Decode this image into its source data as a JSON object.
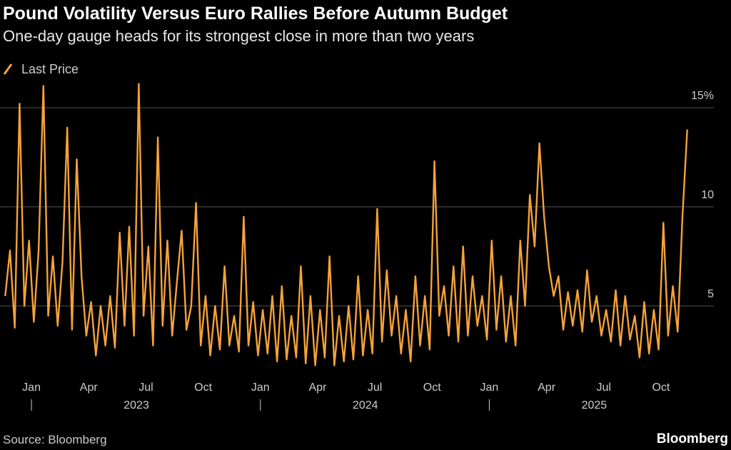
{
  "chart_data": {
    "type": "line",
    "title": "Pound Volatility Versus Euro Rallies Before Autumn Budget",
    "subtitle": "One-day gauge heads for its strongest close in more than two years",
    "source": "Source: Bloomberg",
    "brand": "Bloomberg",
    "x": [
      "2022-12",
      "2022-12",
      "2022-12",
      "2022-12",
      "2023-01",
      "2023-01",
      "2023-01",
      "2023-01",
      "2023-02",
      "2023-02",
      "2023-02",
      "2023-02",
      "2023-03",
      "2023-03",
      "2023-03",
      "2023-03",
      "2023-04",
      "2023-04",
      "2023-04",
      "2023-04",
      "2023-05",
      "2023-05",
      "2023-05",
      "2023-05",
      "2023-06",
      "2023-06",
      "2023-06",
      "2023-06",
      "2023-07",
      "2023-07",
      "2023-07",
      "2023-07",
      "2023-08",
      "2023-08",
      "2023-08",
      "2023-08",
      "2023-09",
      "2023-09",
      "2023-09",
      "2023-09",
      "2023-10",
      "2023-10",
      "2023-10",
      "2023-10",
      "2023-11",
      "2023-11",
      "2023-11",
      "2023-11",
      "2023-12",
      "2023-12",
      "2023-12",
      "2023-12",
      "2024-01",
      "2024-01",
      "2024-01",
      "2024-01",
      "2024-02",
      "2024-02",
      "2024-02",
      "2024-02",
      "2024-03",
      "2024-03",
      "2024-03",
      "2024-03",
      "2024-04",
      "2024-04",
      "2024-04",
      "2024-04",
      "2024-05",
      "2024-05",
      "2024-05",
      "2024-05",
      "2024-06",
      "2024-06",
      "2024-06",
      "2024-06",
      "2024-07",
      "2024-07",
      "2024-07",
      "2024-07",
      "2024-08",
      "2024-08",
      "2024-08",
      "2024-08",
      "2024-09",
      "2024-09",
      "2024-09",
      "2024-09",
      "2024-10",
      "2024-10",
      "2024-10",
      "2024-10",
      "2024-11",
      "2024-11",
      "2024-11",
      "2024-11",
      "2024-12",
      "2024-12",
      "2024-12",
      "2024-12",
      "2025-01",
      "2025-01",
      "2025-01",
      "2025-01",
      "2025-02",
      "2025-02",
      "2025-02",
      "2025-02",
      "2025-03",
      "2025-03",
      "2025-03",
      "2025-03",
      "2025-04",
      "2025-04",
      "2025-04",
      "2025-04",
      "2025-05",
      "2025-05",
      "2025-05",
      "2025-05",
      "2025-06",
      "2025-06",
      "2025-06",
      "2025-06",
      "2025-07",
      "2025-07",
      "2025-07",
      "2025-07",
      "2025-08",
      "2025-08",
      "2025-08",
      "2025-08",
      "2025-09",
      "2025-09",
      "2025-09",
      "2025-09",
      "2025-10",
      "2025-10",
      "2025-10",
      "2025-10",
      "2025-11",
      "2025-11",
      "2025-11",
      "2025-11"
    ],
    "series": [
      {
        "name": "Last Price",
        "color": "#f5a23a",
        "values": [
          5.5,
          7.8,
          3.9,
          15.2,
          5.0,
          8.3,
          4.2,
          7.8,
          16.1,
          4.5,
          7.5,
          4.0,
          7.2,
          14.0,
          3.8,
          12.4,
          6.5,
          3.5,
          5.2,
          2.5,
          5.0,
          3.0,
          5.5,
          2.9,
          8.7,
          4.0,
          9.0,
          3.5,
          16.2,
          4.5,
          8.0,
          3.0,
          13.5,
          4.0,
          8.3,
          3.5,
          6.2,
          8.8,
          3.8,
          5.0,
          10.2,
          3.0,
          5.5,
          2.5,
          5.0,
          2.8,
          7.0,
          3.0,
          4.5,
          2.7,
          9.5,
          3.0,
          5.2,
          2.5,
          4.8,
          2.6,
          5.5,
          2.2,
          6.0,
          2.3,
          4.5,
          2.4,
          7.0,
          2.1,
          5.5,
          2.0,
          4.8,
          2.4,
          7.5,
          2.0,
          4.5,
          2.2,
          5.0,
          2.3,
          6.5,
          2.5,
          4.8,
          2.6,
          9.9,
          3.2,
          6.8,
          3.5,
          5.5,
          2.6,
          4.8,
          2.2,
          6.5,
          3.0,
          5.5,
          2.8,
          12.3,
          4.5,
          6.0,
          3.5,
          7.0,
          3.2,
          8.0,
          3.5,
          6.5,
          4.0,
          5.5,
          3.3,
          8.3,
          3.8,
          6.5,
          3.2,
          5.5,
          3.0,
          8.3,
          5.0,
          10.6,
          8.0,
          13.2,
          9.5,
          7.0,
          5.5,
          6.5,
          3.8,
          5.7,
          4.0,
          5.8,
          3.7,
          6.8,
          4.2,
          5.5,
          3.5,
          4.8,
          3.2,
          5.8,
          3.0,
          5.5,
          3.3,
          4.5,
          2.4,
          5.2,
          2.6,
          4.8,
          2.8,
          9.2,
          3.5,
          6.0,
          3.7,
          9.5,
          13.9
        ]
      }
    ],
    "xlim": [
      "2022-12",
      "2025-11"
    ],
    "xticks": [
      {
        "value": "2023-01",
        "label": "Jan"
      },
      {
        "value": "2023-04",
        "label": "Apr"
      },
      {
        "value": "2023-07",
        "label": "Jul"
      },
      {
        "value": "2023-10",
        "label": "Oct"
      },
      {
        "value": "2024-01",
        "label": "Jan"
      },
      {
        "value": "2024-04",
        "label": "Apr"
      },
      {
        "value": "2024-07",
        "label": "Jul"
      },
      {
        "value": "2024-10",
        "label": "Oct"
      },
      {
        "value": "2025-01",
        "label": "Jan"
      },
      {
        "value": "2025-04",
        "label": "Apr"
      },
      {
        "value": "2025-07",
        "label": "Jul"
      },
      {
        "value": "2025-10",
        "label": "Oct"
      }
    ],
    "year_labels": [
      "2023",
      "2024",
      "2025"
    ],
    "ylim": [
      1.8,
      16.6
    ],
    "yticks": [
      5,
      10,
      {
        "value": 15,
        "label": "15%"
      }
    ],
    "grid": true
  }
}
